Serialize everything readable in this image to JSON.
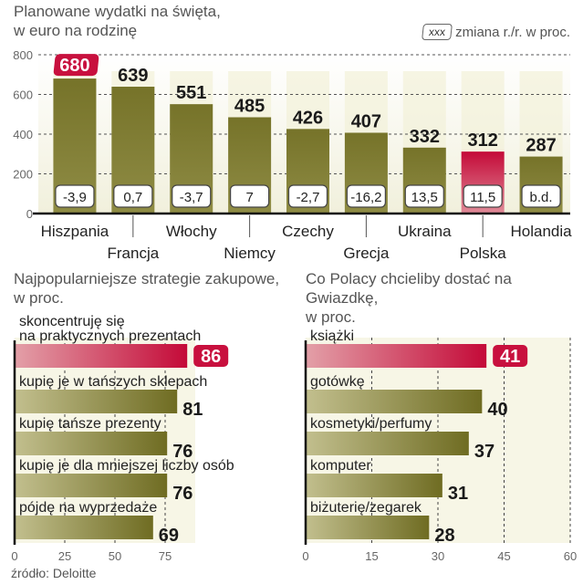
{
  "chart_data": [
    {
      "type": "bar",
      "title": "Planowane wydatki na święta,",
      "subtitle": "w euro na rodzinę",
      "legend": {
        "box_label": "xxx",
        "label": "zmiana r./r. w proc.",
        "position": "top-right"
      },
      "ylim": [
        0,
        800
      ],
      "yticks": [
        "0",
        "200",
        "400",
        "600",
        "800"
      ],
      "grid": true,
      "categories": [
        "Hiszpania",
        "Francja",
        "Włochy",
        "Niemcy",
        "Czechy",
        "Grecja",
        "Ukraina",
        "Polska",
        "Holandia"
      ],
      "values": [
        680,
        639,
        551,
        485,
        426,
        407,
        332,
        312,
        287
      ],
      "value_labels": [
        "680",
        "639",
        "551",
        "485",
        "426",
        "407",
        "332",
        "312",
        "287"
      ],
      "change_labels": [
        "-3,9",
        "0,7",
        "-3,7",
        "7",
        "-2,7",
        "-16,2",
        "13,5",
        "11,5",
        "b.d."
      ],
      "highlight": [
        "Polska"
      ],
      "highlight_label": [
        "Hiszpania"
      ]
    },
    {
      "type": "bar",
      "orientation": "horizontal",
      "title": "Najpopularniejsze strategie zakupowe,",
      "subtitle": "w proc.",
      "xlim": [
        0,
        100
      ],
      "xticks": [
        "0",
        "25",
        "50",
        "75"
      ],
      "grid": true,
      "categories": [
        "skoncentruję się na praktycznych prezentach",
        "kupię je w tańszych sklepach",
        "kupię tańsze prezenty",
        "kupię je dla mniejszej liczby osób",
        "pójdę na wyprzedaże"
      ],
      "category_lines": [
        [
          "skoncentruję się",
          "na praktycznych prezentach"
        ],
        [
          "kupię je w tańszych sklepach"
        ],
        [
          "kupię tańsze prezenty"
        ],
        [
          "kupię je dla mniejszej liczby osób"
        ],
        [
          "pójdę na wyprzedaże"
        ]
      ],
      "values": [
        86,
        81,
        76,
        76,
        69
      ],
      "value_labels": [
        "86",
        "81",
        "76",
        "76",
        "69"
      ],
      "highlight_index": 0
    },
    {
      "type": "bar",
      "orientation": "horizontal",
      "title": "Co Polacy chcieliby dostać na Gwiazdkę,",
      "subtitle": "w proc.",
      "xlim": [
        0,
        60
      ],
      "xticks": [
        "0",
        "15",
        "30",
        "45",
        "60"
      ],
      "grid": true,
      "categories": [
        "książki",
        "gotówkę",
        "kosmetyki/perfumy",
        "komputer",
        "biżuterię/zegarek"
      ],
      "category_lines": [
        [
          "książki"
        ],
        [
          "gotówkę"
        ],
        [
          "kosmetyki/perfumy"
        ],
        [
          "komputer"
        ],
        [
          "biżuterię/zegarek"
        ]
      ],
      "values": [
        41,
        40,
        37,
        31,
        28
      ],
      "value_labels": [
        "41",
        "40",
        "37",
        "31",
        "28"
      ],
      "highlight_index": 0
    }
  ],
  "source": "źródło: Deloitte",
  "colors": {
    "olive": "#7d7a2e",
    "red": "#c8103e",
    "stripe": "#f3f2dc"
  }
}
